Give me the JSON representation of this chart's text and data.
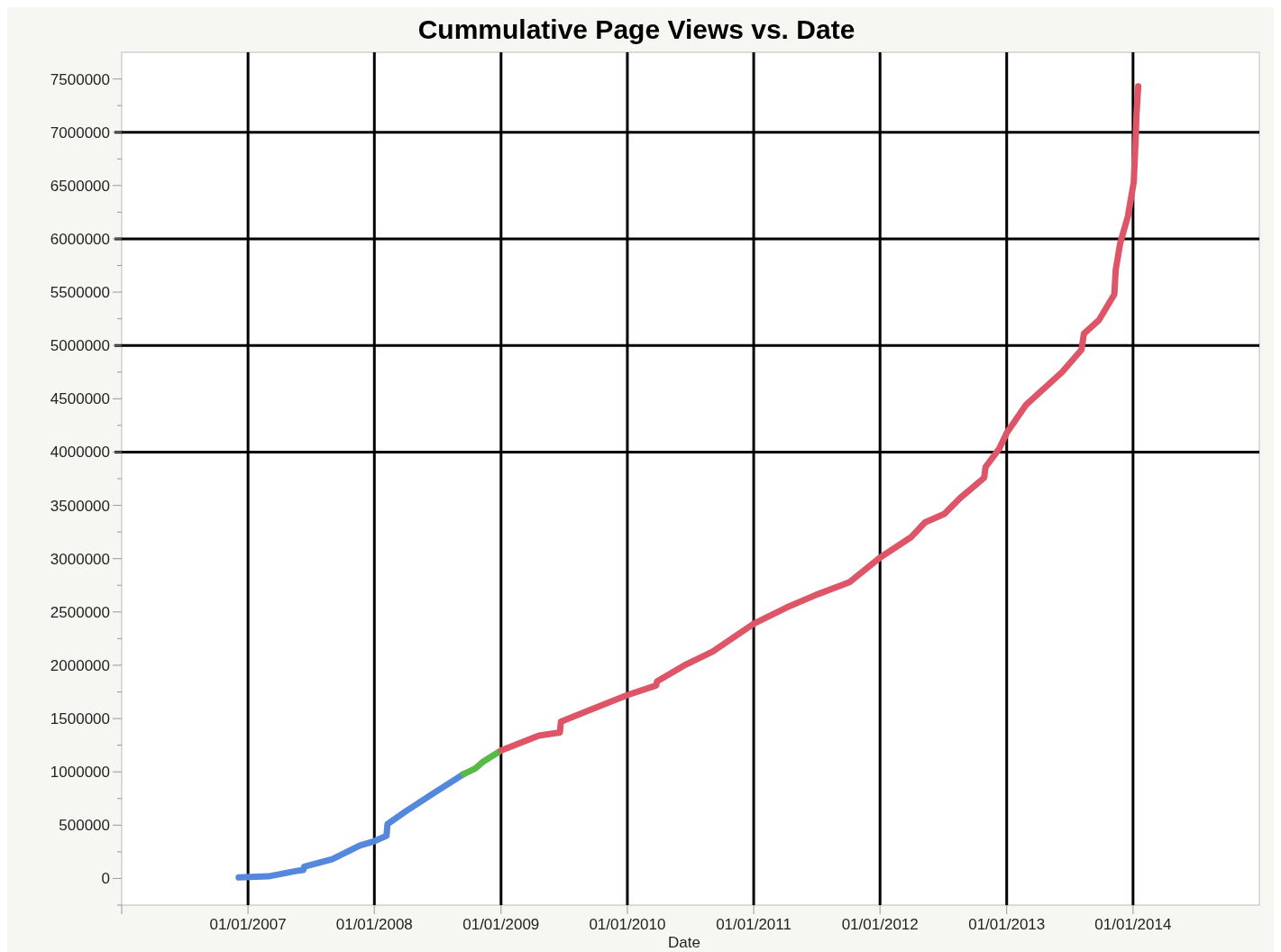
{
  "chart_data": {
    "type": "line",
    "title": "Cummulative Page Views vs. Date",
    "xlabel": "Date",
    "xlim": [
      "2006-01-01",
      "2015-01-01"
    ],
    "xticks": [
      {
        "value": "2006-01-01",
        "label": null
      },
      {
        "value": "2007-01-01",
        "label": "01/01/2007"
      },
      {
        "value": "2008-01-01",
        "label": "01/01/2008"
      },
      {
        "value": "2009-01-01",
        "label": "01/01/2009"
      },
      {
        "value": "2010-01-01",
        "label": "01/01/2010"
      },
      {
        "value": "2011-01-01",
        "label": "01/01/2011"
      },
      {
        "value": "2012-01-01",
        "label": "01/01/2012"
      },
      {
        "value": "2013-01-01",
        "label": "01/01/2013"
      },
      {
        "value": "2014-01-01",
        "label": "01/01/2014"
      }
    ],
    "ylim": [
      -250000,
      7750000
    ],
    "yticks": [
      {
        "value": -250000,
        "label": null
      },
      0,
      {
        "value": 250000,
        "label": null
      },
      500000,
      {
        "value": 750000,
        "label": null
      },
      1000000,
      {
        "value": 1250000,
        "label": null
      },
      1500000,
      {
        "value": 1750000,
        "label": null
      },
      2000000,
      {
        "value": 2250000,
        "label": null
      },
      2500000,
      {
        "value": 2750000,
        "label": null
      },
      3000000,
      {
        "value": 3250000,
        "label": null
      },
      3500000,
      {
        "value": 3750000,
        "label": null
      },
      4000000,
      {
        "value": 4250000,
        "label": null
      },
      4500000,
      {
        "value": 4750000,
        "label": null
      },
      5000000,
      {
        "value": 5250000,
        "label": null
      },
      5500000,
      {
        "value": 5750000,
        "label": null
      },
      6000000,
      {
        "value": 6250000,
        "label": null
      },
      6500000,
      {
        "value": 6750000,
        "label": null
      },
      7000000,
      {
        "value": 7250000,
        "label": null
      },
      7500000
    ],
    "grid": "x",
    "marker": "none",
    "line_style": "solid",
    "ref_lines": [
      {
        "axis": "y",
        "value": 4000000,
        "color": "#000000"
      },
      {
        "axis": "y",
        "value": 5000000,
        "color": "#000000"
      },
      {
        "axis": "y",
        "value": 6000000,
        "color": "#000000"
      },
      {
        "axis": "y",
        "value": 7000000,
        "color": "#000000"
      }
    ],
    "series": [
      {
        "color": "#5588dd",
        "x": [
          "2006-12-05",
          "2007-03-01",
          "2007-05-20",
          "2007-06-10",
          "2007-06-12",
          "2007-09-01",
          "2007-11-20",
          "2008-01-01",
          "2008-02-05",
          "2008-02-08",
          "2008-04-01",
          "2008-06-20",
          "2008-09-15"
        ],
        "values": [
          10000,
          20000,
          70000,
          80000,
          110000,
          180000,
          310000,
          350000,
          400000,
          510000,
          630000,
          800000,
          980000
        ]
      },
      {
        "color": "#55bb44",
        "x": [
          "2008-09-15",
          "2008-10-18",
          "2008-11-08",
          "2009-01-01"
        ],
        "values": [
          980000,
          1030000,
          1090000,
          1200000
        ]
      },
      {
        "color": "#dd5566",
        "x": [
          "2009-01-01",
          "2009-04-20",
          "2009-06-20",
          "2009-06-23",
          "2009-09-15",
          "2010-01-01",
          "2010-03-25",
          "2010-03-28",
          "2010-06-15",
          "2010-09-05",
          "2011-01-01",
          "2011-04-05",
          "2011-06-30",
          "2011-10-05",
          "2012-01-01",
          "2012-03-30",
          "2012-05-10",
          "2012-07-05",
          "2012-08-20",
          "2012-10-28",
          "2012-11-01",
          "2012-12-10",
          "2013-01-01",
          "2013-02-25",
          "2013-06-10",
          "2013-08-05",
          "2013-08-12",
          "2013-09-25",
          "2013-11-08",
          "2013-11-12",
          "2013-11-25",
          "2013-12-17",
          "2014-01-03",
          "2014-01-08",
          "2014-01-11",
          "2014-01-16"
        ],
        "values": [
          1200000,
          1340000,
          1370000,
          1470000,
          1580000,
          1720000,
          1810000,
          1850000,
          2000000,
          2130000,
          2390000,
          2540000,
          2660000,
          2780000,
          3010000,
          3200000,
          3340000,
          3420000,
          3570000,
          3760000,
          3860000,
          4030000,
          4180000,
          4440000,
          4750000,
          4960000,
          5110000,
          5240000,
          5480000,
          5710000,
          5960000,
          6210000,
          6530000,
          6890000,
          7170000,
          7430000
        ]
      }
    ]
  }
}
